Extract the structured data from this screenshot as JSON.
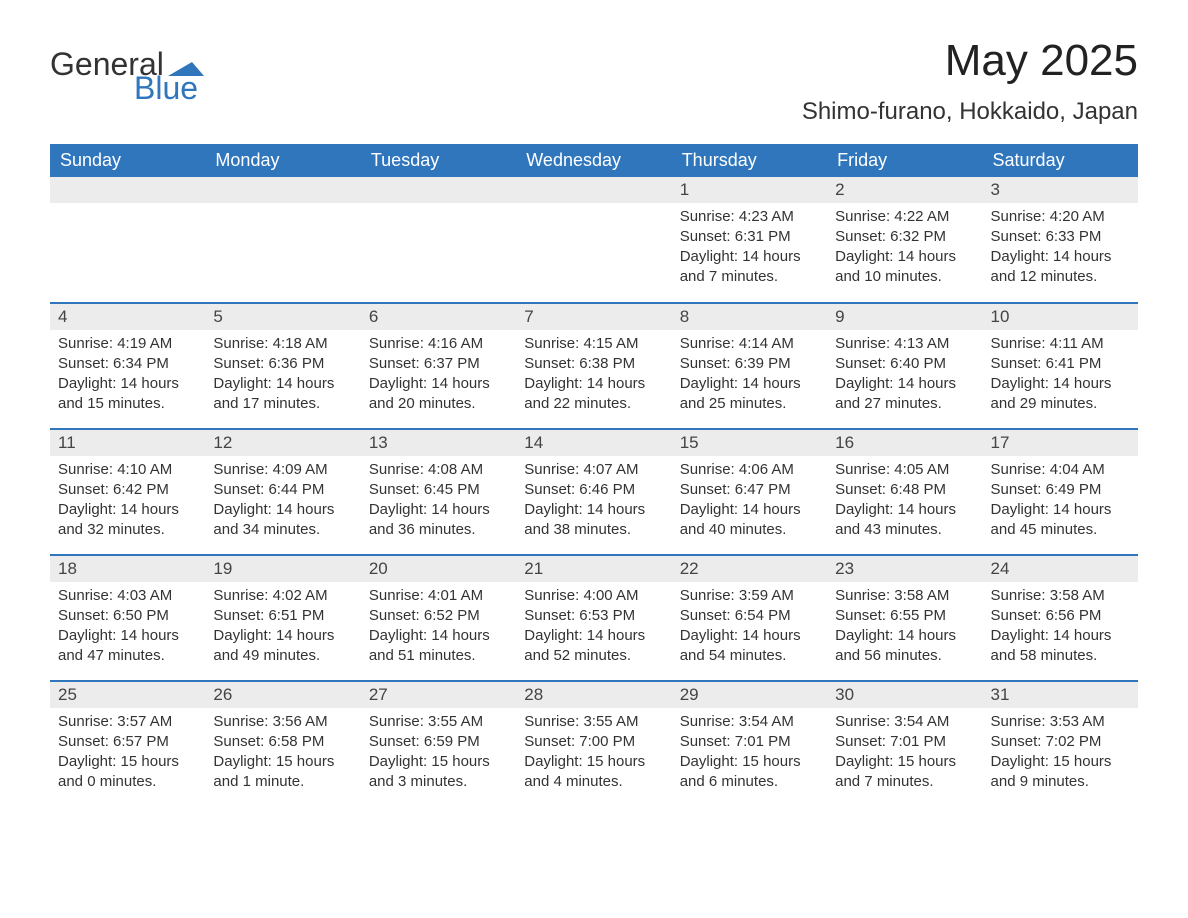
{
  "logo": {
    "general": "General",
    "blue": "Blue",
    "logo_color": "#2f76bd"
  },
  "header": {
    "month_year": "May 2025",
    "location": "Shimo-furano, Hokkaido, Japan"
  },
  "colors": {
    "header_bg": "#2f76bd",
    "header_text": "#ffffff",
    "daynum_bg": "#ececec",
    "row_border": "#2f76bd",
    "text": "#333333",
    "background": "#ffffff"
  },
  "typography": {
    "month_fontsize": 44,
    "location_fontsize": 24,
    "dayname_fontsize": 18,
    "daynum_fontsize": 17,
    "body_fontsize": 15,
    "font_family": "Arial"
  },
  "daynames": [
    "Sunday",
    "Monday",
    "Tuesday",
    "Wednesday",
    "Thursday",
    "Friday",
    "Saturday"
  ],
  "weeks": [
    [
      {
        "day": "",
        "sunrise": "",
        "sunset": "",
        "daylight": ""
      },
      {
        "day": "",
        "sunrise": "",
        "sunset": "",
        "daylight": ""
      },
      {
        "day": "",
        "sunrise": "",
        "sunset": "",
        "daylight": ""
      },
      {
        "day": "",
        "sunrise": "",
        "sunset": "",
        "daylight": ""
      },
      {
        "day": "1",
        "sunrise": "Sunrise: 4:23 AM",
        "sunset": "Sunset: 6:31 PM",
        "daylight": "Daylight: 14 hours and 7 minutes."
      },
      {
        "day": "2",
        "sunrise": "Sunrise: 4:22 AM",
        "sunset": "Sunset: 6:32 PM",
        "daylight": "Daylight: 14 hours and 10 minutes."
      },
      {
        "day": "3",
        "sunrise": "Sunrise: 4:20 AM",
        "sunset": "Sunset: 6:33 PM",
        "daylight": "Daylight: 14 hours and 12 minutes."
      }
    ],
    [
      {
        "day": "4",
        "sunrise": "Sunrise: 4:19 AM",
        "sunset": "Sunset: 6:34 PM",
        "daylight": "Daylight: 14 hours and 15 minutes."
      },
      {
        "day": "5",
        "sunrise": "Sunrise: 4:18 AM",
        "sunset": "Sunset: 6:36 PM",
        "daylight": "Daylight: 14 hours and 17 minutes."
      },
      {
        "day": "6",
        "sunrise": "Sunrise: 4:16 AM",
        "sunset": "Sunset: 6:37 PM",
        "daylight": "Daylight: 14 hours and 20 minutes."
      },
      {
        "day": "7",
        "sunrise": "Sunrise: 4:15 AM",
        "sunset": "Sunset: 6:38 PM",
        "daylight": "Daylight: 14 hours and 22 minutes."
      },
      {
        "day": "8",
        "sunrise": "Sunrise: 4:14 AM",
        "sunset": "Sunset: 6:39 PM",
        "daylight": "Daylight: 14 hours and 25 minutes."
      },
      {
        "day": "9",
        "sunrise": "Sunrise: 4:13 AM",
        "sunset": "Sunset: 6:40 PM",
        "daylight": "Daylight: 14 hours and 27 minutes."
      },
      {
        "day": "10",
        "sunrise": "Sunrise: 4:11 AM",
        "sunset": "Sunset: 6:41 PM",
        "daylight": "Daylight: 14 hours and 29 minutes."
      }
    ],
    [
      {
        "day": "11",
        "sunrise": "Sunrise: 4:10 AM",
        "sunset": "Sunset: 6:42 PM",
        "daylight": "Daylight: 14 hours and 32 minutes."
      },
      {
        "day": "12",
        "sunrise": "Sunrise: 4:09 AM",
        "sunset": "Sunset: 6:44 PM",
        "daylight": "Daylight: 14 hours and 34 minutes."
      },
      {
        "day": "13",
        "sunrise": "Sunrise: 4:08 AM",
        "sunset": "Sunset: 6:45 PM",
        "daylight": "Daylight: 14 hours and 36 minutes."
      },
      {
        "day": "14",
        "sunrise": "Sunrise: 4:07 AM",
        "sunset": "Sunset: 6:46 PM",
        "daylight": "Daylight: 14 hours and 38 minutes."
      },
      {
        "day": "15",
        "sunrise": "Sunrise: 4:06 AM",
        "sunset": "Sunset: 6:47 PM",
        "daylight": "Daylight: 14 hours and 40 minutes."
      },
      {
        "day": "16",
        "sunrise": "Sunrise: 4:05 AM",
        "sunset": "Sunset: 6:48 PM",
        "daylight": "Daylight: 14 hours and 43 minutes."
      },
      {
        "day": "17",
        "sunrise": "Sunrise: 4:04 AM",
        "sunset": "Sunset: 6:49 PM",
        "daylight": "Daylight: 14 hours and 45 minutes."
      }
    ],
    [
      {
        "day": "18",
        "sunrise": "Sunrise: 4:03 AM",
        "sunset": "Sunset: 6:50 PM",
        "daylight": "Daylight: 14 hours and 47 minutes."
      },
      {
        "day": "19",
        "sunrise": "Sunrise: 4:02 AM",
        "sunset": "Sunset: 6:51 PM",
        "daylight": "Daylight: 14 hours and 49 minutes."
      },
      {
        "day": "20",
        "sunrise": "Sunrise: 4:01 AM",
        "sunset": "Sunset: 6:52 PM",
        "daylight": "Daylight: 14 hours and 51 minutes."
      },
      {
        "day": "21",
        "sunrise": "Sunrise: 4:00 AM",
        "sunset": "Sunset: 6:53 PM",
        "daylight": "Daylight: 14 hours and 52 minutes."
      },
      {
        "day": "22",
        "sunrise": "Sunrise: 3:59 AM",
        "sunset": "Sunset: 6:54 PM",
        "daylight": "Daylight: 14 hours and 54 minutes."
      },
      {
        "day": "23",
        "sunrise": "Sunrise: 3:58 AM",
        "sunset": "Sunset: 6:55 PM",
        "daylight": "Daylight: 14 hours and 56 minutes."
      },
      {
        "day": "24",
        "sunrise": "Sunrise: 3:58 AM",
        "sunset": "Sunset: 6:56 PM",
        "daylight": "Daylight: 14 hours and 58 minutes."
      }
    ],
    [
      {
        "day": "25",
        "sunrise": "Sunrise: 3:57 AM",
        "sunset": "Sunset: 6:57 PM",
        "daylight": "Daylight: 15 hours and 0 minutes."
      },
      {
        "day": "26",
        "sunrise": "Sunrise: 3:56 AM",
        "sunset": "Sunset: 6:58 PM",
        "daylight": "Daylight: 15 hours and 1 minute."
      },
      {
        "day": "27",
        "sunrise": "Sunrise: 3:55 AM",
        "sunset": "Sunset: 6:59 PM",
        "daylight": "Daylight: 15 hours and 3 minutes."
      },
      {
        "day": "28",
        "sunrise": "Sunrise: 3:55 AM",
        "sunset": "Sunset: 7:00 PM",
        "daylight": "Daylight: 15 hours and 4 minutes."
      },
      {
        "day": "29",
        "sunrise": "Sunrise: 3:54 AM",
        "sunset": "Sunset: 7:01 PM",
        "daylight": "Daylight: 15 hours and 6 minutes."
      },
      {
        "day": "30",
        "sunrise": "Sunrise: 3:54 AM",
        "sunset": "Sunset: 7:01 PM",
        "daylight": "Daylight: 15 hours and 7 minutes."
      },
      {
        "day": "31",
        "sunrise": "Sunrise: 3:53 AM",
        "sunset": "Sunset: 7:02 PM",
        "daylight": "Daylight: 15 hours and 9 minutes."
      }
    ]
  ]
}
